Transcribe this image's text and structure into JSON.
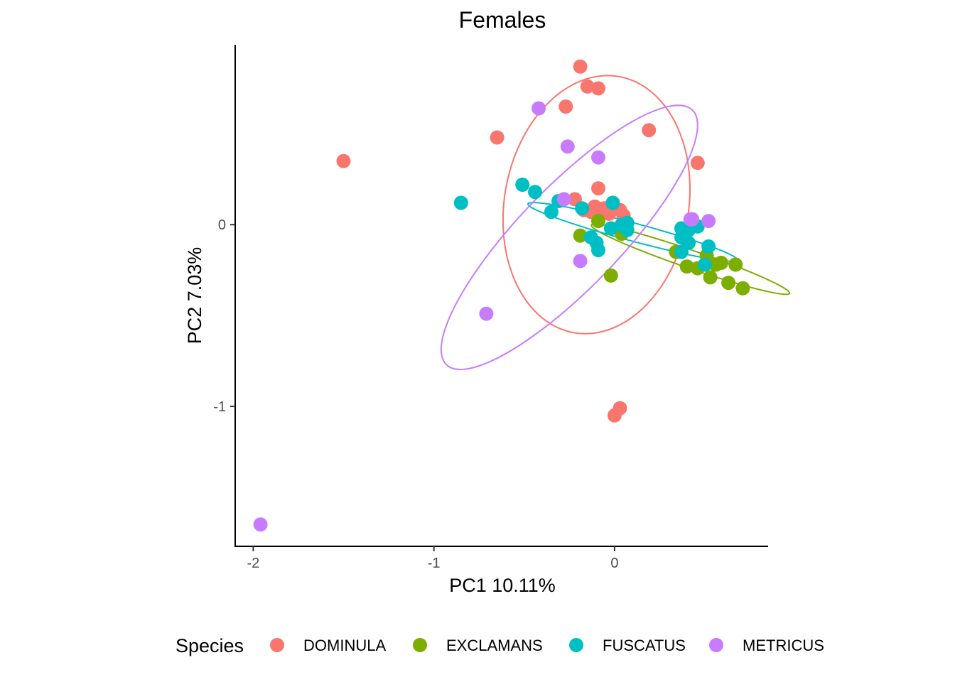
{
  "chart_data": {
    "type": "scatter",
    "title": "Females",
    "xlabel": "PC1 10.11%",
    "ylabel": "PC2 7.03%",
    "xlim": [
      -2.1,
      0.85
    ],
    "ylim": [
      -1.77,
      0.99
    ],
    "x_ticks": [
      {
        "value": -2,
        "label": "-2"
      },
      {
        "value": -1,
        "label": "-1"
      },
      {
        "value": 0,
        "label": "0"
      }
    ],
    "y_ticks": [
      {
        "value": 0,
        "label": "0"
      },
      {
        "value": -1,
        "label": "-1"
      }
    ],
    "grid": false,
    "legend": {
      "title": "Species",
      "placement": "bottom"
    },
    "series": [
      {
        "name": "DOMINULA",
        "color": "#F8766D",
        "points": [
          [
            -0.19,
            0.87
          ],
          [
            -0.15,
            0.76
          ],
          [
            -0.09,
            0.75
          ],
          [
            -0.27,
            0.65
          ],
          [
            -0.65,
            0.48
          ],
          [
            0.19,
            0.52
          ],
          [
            -1.5,
            0.35
          ],
          [
            0.46,
            0.34
          ],
          [
            -0.09,
            0.2
          ],
          [
            -0.22,
            0.14
          ],
          [
            -0.11,
            0.1
          ],
          [
            -0.06,
            0.09
          ],
          [
            0.03,
            0.08
          ],
          [
            -0.13,
            0.07
          ],
          [
            -0.03,
            0.06
          ],
          [
            0.03,
            -1.01
          ],
          [
            0.0,
            -1.05
          ],
          [
            -0.01,
            0.12
          ],
          [
            -0.17,
            0.08
          ],
          [
            0.05,
            0.05
          ]
        ],
        "ellipse": {
          "center": [
            -0.1,
            0.11
          ],
          "semi_axes": [
            0.72,
            0.51
          ],
          "angle_deg": 80
        }
      },
      {
        "name": "EXCLAMANS",
        "color": "#7CAE00",
        "points": [
          [
            -0.09,
            0.02
          ],
          [
            -0.19,
            -0.06
          ],
          [
            0.04,
            -0.05
          ],
          [
            0.34,
            -0.15
          ],
          [
            0.4,
            -0.23
          ],
          [
            0.46,
            -0.24
          ],
          [
            0.51,
            -0.17
          ],
          [
            0.53,
            -0.29
          ],
          [
            0.56,
            -0.22
          ],
          [
            0.63,
            -0.32
          ],
          [
            0.67,
            -0.22
          ],
          [
            0.71,
            -0.35
          ],
          [
            -0.02,
            -0.28
          ],
          [
            0.59,
            -0.21
          ]
        ],
        "ellipse": {
          "center": [
            0.42,
            -0.19
          ],
          "semi_axes": [
            0.58,
            0.05
          ],
          "angle_deg": -19
        }
      },
      {
        "name": "FUSCATUS",
        "color": "#00BFC4",
        "points": [
          [
            -0.85,
            0.12
          ],
          [
            -0.51,
            0.22
          ],
          [
            -0.44,
            0.18
          ],
          [
            -0.31,
            0.13
          ],
          [
            -0.35,
            0.07
          ],
          [
            -0.18,
            0.09
          ],
          [
            -0.01,
            0.12
          ],
          [
            -0.02,
            -0.02
          ],
          [
            0.04,
            0.0
          ],
          [
            0.07,
            0.01
          ],
          [
            0.07,
            -0.03
          ],
          [
            -0.13,
            -0.07
          ],
          [
            -0.1,
            -0.1
          ],
          [
            -0.09,
            -0.14
          ],
          [
            0.37,
            -0.02
          ],
          [
            0.41,
            -0.03
          ],
          [
            0.46,
            -0.01
          ],
          [
            0.37,
            -0.07
          ],
          [
            0.41,
            -0.1
          ],
          [
            0.52,
            -0.12
          ],
          [
            0.37,
            -0.15
          ],
          [
            0.5,
            -0.22
          ]
        ],
        "ellipse": {
          "center": [
            0.1,
            -0.04
          ],
          "semi_axes": [
            0.6,
            0.05
          ],
          "angle_deg": -15
        }
      },
      {
        "name": "METRICUS",
        "color": "#C77CFF",
        "points": [
          [
            -0.42,
            0.64
          ],
          [
            -0.26,
            0.43
          ],
          [
            -0.09,
            0.37
          ],
          [
            -0.28,
            0.14
          ],
          [
            0.42,
            0.03
          ],
          [
            0.43,
            0.03
          ],
          [
            0.52,
            0.02
          ],
          [
            -0.19,
            -0.2
          ],
          [
            -0.71,
            -0.49
          ],
          [
            -1.96,
            -1.65
          ]
        ],
        "ellipse": {
          "center": [
            -0.25,
            -0.07
          ],
          "semi_axes": [
            0.98,
            0.28
          ],
          "angle_deg": 46
        }
      }
    ]
  }
}
